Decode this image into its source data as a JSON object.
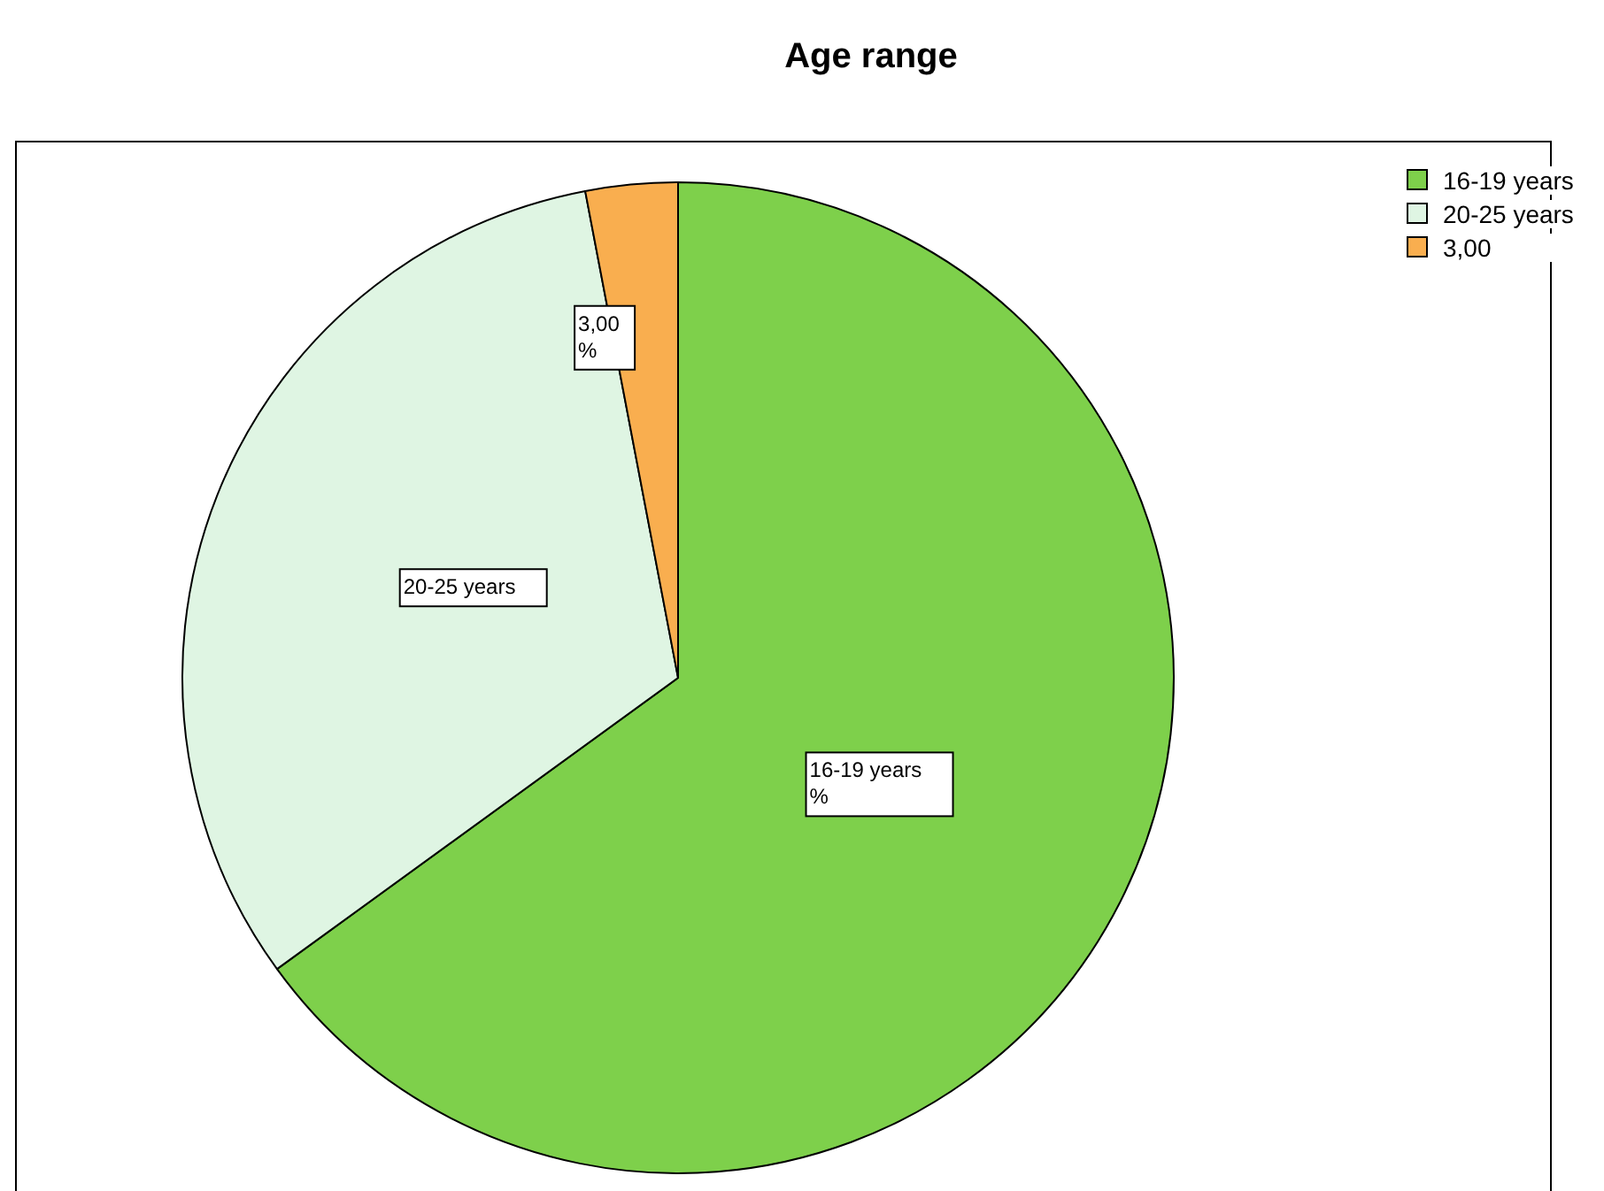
{
  "chart_data": {
    "type": "pie",
    "title": "Age range",
    "categories": [
      "16-19 years",
      "20-25 years",
      "3,00"
    ],
    "values": [
      65,
      32,
      3
    ],
    "colors": [
      "#7ed04b",
      "#dff5e3",
      "#f9ae4f"
    ],
    "annotations": [
      "16-19 years\n%",
      "20-25 years",
      "3,00\n%"
    ],
    "legend": "top right"
  }
}
